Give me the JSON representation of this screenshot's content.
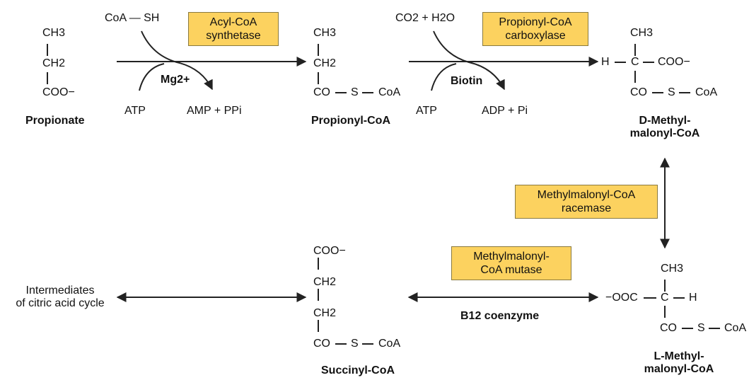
{
  "propionate": {
    "ch3": "CH3",
    "ch2": "CH2",
    "coo": "COO−",
    "name": "Propionate"
  },
  "step1": {
    "enzyme_line1": "Acyl-CoA",
    "enzyme_line2": "synthetase",
    "reactant_top": "CoA — SH",
    "cofactor": "Mg2+",
    "reactant_bottom": "ATP",
    "product_bottom": "AMP + PPi"
  },
  "propionyl_coa": {
    "ch3": "CH3",
    "ch2": "CH2",
    "co": "CO",
    "s": "S",
    "coa": "CoA",
    "name": "Propionyl-CoA"
  },
  "step2": {
    "enzyme_line1": "Propionyl-CoA",
    "enzyme_line2": "carboxylase",
    "reactant_top": "CO2 + H2O",
    "cofactor": "Biotin",
    "reactant_bottom": "ATP",
    "product_bottom": "ADP + Pi"
  },
  "d_methylmalonyl": {
    "ch3": "CH3",
    "h": "H",
    "c": "C",
    "coo": "COO−",
    "co": "CO",
    "s": "S",
    "coa": "CoA",
    "name_prefix": "D",
    "name_line1": "-Methyl-",
    "name_line2": "malonyl-CoA"
  },
  "step3": {
    "enzyme_line1": "Methylmalonyl-CoA",
    "enzyme_line2": "racemase"
  },
  "l_methylmalonyl": {
    "ch3": "CH3",
    "ooc": "−OOC",
    "c": "C",
    "h": "H",
    "co": "CO",
    "s": "S",
    "coa": "CoA",
    "name_prefix": "L",
    "name_line1": "-Methyl-",
    "name_line2": "malonyl-CoA"
  },
  "step4": {
    "enzyme_line1": "Methylmalonyl-",
    "enzyme_line2": "CoA mutase",
    "cofactor": "B12 coenzyme"
  },
  "succinyl_coa": {
    "coo": "COO−",
    "ch2a": "CH2",
    "ch2b": "CH2",
    "co": "CO",
    "s": "S",
    "coa": "CoA",
    "name": "Succinyl-CoA"
  },
  "intermediates": {
    "line1": "Intermediates",
    "line2": "of citric acid cycle"
  }
}
